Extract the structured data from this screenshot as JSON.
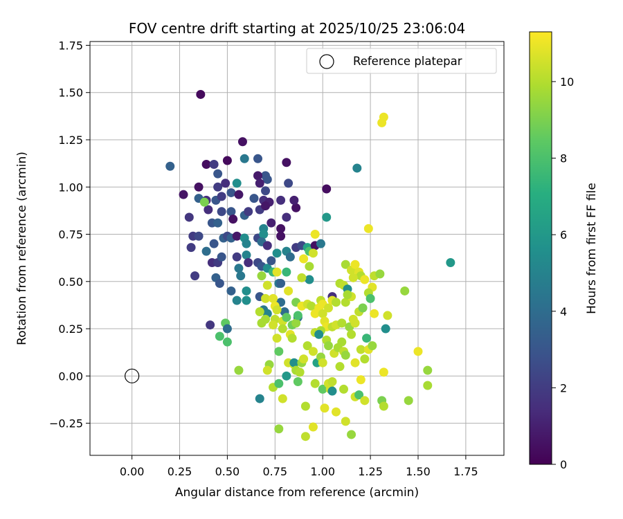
{
  "chart_data": {
    "type": "scatter",
    "title": "FOV centre drift starting at 2025/10/25 23:06:04",
    "xlabel": "Angular distance from reference (arcmin)",
    "ylabel": "Rotation from reference (arcmin)",
    "xlim": [
      -0.22,
      1.95
    ],
    "ylim": [
      -0.42,
      1.77
    ],
    "xticks": [
      "0.00",
      "0.25",
      "0.50",
      "0.75",
      "1.00",
      "1.25",
      "1.50",
      "1.75"
    ],
    "yticks": [
      "−0.25",
      "0.00",
      "0.25",
      "0.50",
      "0.75",
      "1.00",
      "1.25",
      "1.50",
      "1.75"
    ],
    "grid": true,
    "legend": {
      "placement": "upper-right",
      "entries": [
        "Reference platepar"
      ]
    },
    "reference_point": {
      "label": "Reference platepar",
      "x": 0.0,
      "y": 0.0
    },
    "colorbar": {
      "label": "Hours from first FF file",
      "range": [
        0,
        11.3
      ],
      "ticks": [
        "0",
        "2",
        "4",
        "6",
        "8",
        "10"
      ],
      "colormap": "viridis"
    },
    "points": [
      {
        "x": 0.36,
        "y": 1.49,
        "h": 0.3
      },
      {
        "x": 0.58,
        "y": 1.24,
        "h": 0.5
      },
      {
        "x": 0.39,
        "y": 1.12,
        "h": 0.4
      },
      {
        "x": 0.5,
        "y": 1.14,
        "h": 0.3
      },
      {
        "x": 0.81,
        "y": 1.13,
        "h": 0.5
      },
      {
        "x": 0.2,
        "y": 1.11,
        "h": 3.5
      },
      {
        "x": 0.43,
        "y": 1.12,
        "h": 2.0
      },
      {
        "x": 0.45,
        "y": 1.07,
        "h": 3.0
      },
      {
        "x": 0.59,
        "y": 1.15,
        "h": 4.5
      },
      {
        "x": 0.66,
        "y": 1.15,
        "h": 3.0
      },
      {
        "x": 0.7,
        "y": 1.06,
        "h": 3.0
      },
      {
        "x": 1.18,
        "y": 1.1,
        "h": 5.0
      },
      {
        "x": 1.02,
        "y": 0.99,
        "h": 0.4
      },
      {
        "x": 0.27,
        "y": 0.96,
        "h": 0.6
      },
      {
        "x": 0.35,
        "y": 1.0,
        "h": 0.5
      },
      {
        "x": 0.45,
        "y": 1.0,
        "h": 2.0
      },
      {
        "x": 0.49,
        "y": 1.02,
        "h": 1.5
      },
      {
        "x": 0.55,
        "y": 1.02,
        "h": 5.5
      },
      {
        "x": 0.66,
        "y": 1.06,
        "h": 0.8
      },
      {
        "x": 0.71,
        "y": 1.04,
        "h": 3.0
      },
      {
        "x": 0.82,
        "y": 1.02,
        "h": 2.5
      },
      {
        "x": 0.39,
        "y": 0.93,
        "h": 1.5
      },
      {
        "x": 0.44,
        "y": 0.93,
        "h": 3.0
      },
      {
        "x": 0.35,
        "y": 0.94,
        "h": 3.5
      },
      {
        "x": 0.47,
        "y": 0.95,
        "h": 2.0
      },
      {
        "x": 0.52,
        "y": 0.97,
        "h": 3.0
      },
      {
        "x": 0.56,
        "y": 0.96,
        "h": 0.7
      },
      {
        "x": 0.64,
        "y": 0.94,
        "h": 3.0
      },
      {
        "x": 0.67,
        "y": 1.02,
        "h": 1.0
      },
      {
        "x": 0.7,
        "y": 0.98,
        "h": 2.5
      },
      {
        "x": 0.69,
        "y": 0.93,
        "h": 1.5
      },
      {
        "x": 0.72,
        "y": 0.92,
        "h": 1.0
      },
      {
        "x": 0.78,
        "y": 0.93,
        "h": 1.5
      },
      {
        "x": 0.86,
        "y": 0.89,
        "h": 0.5
      },
      {
        "x": 0.85,
        "y": 0.93,
        "h": 1.0
      },
      {
        "x": 0.3,
        "y": 0.84,
        "h": 1.8
      },
      {
        "x": 0.4,
        "y": 0.88,
        "h": 1.5
      },
      {
        "x": 0.47,
        "y": 0.87,
        "h": 2.5
      },
      {
        "x": 0.52,
        "y": 0.87,
        "h": 3.0
      },
      {
        "x": 0.53,
        "y": 0.83,
        "h": 0.5
      },
      {
        "x": 0.59,
        "y": 0.85,
        "h": 3.5
      },
      {
        "x": 0.61,
        "y": 0.87,
        "h": 2.0
      },
      {
        "x": 0.67,
        "y": 0.88,
        "h": 2.0
      },
      {
        "x": 0.7,
        "y": 0.9,
        "h": 0.7
      },
      {
        "x": 0.73,
        "y": 0.81,
        "h": 1.0
      },
      {
        "x": 0.78,
        "y": 0.78,
        "h": 0.5
      },
      {
        "x": 0.81,
        "y": 0.84,
        "h": 1.5
      },
      {
        "x": 0.42,
        "y": 0.81,
        "h": 3.0
      },
      {
        "x": 0.45,
        "y": 0.81,
        "h": 3.5
      },
      {
        "x": 0.32,
        "y": 0.74,
        "h": 2.0
      },
      {
        "x": 0.35,
        "y": 0.74,
        "h": 2.5
      },
      {
        "x": 0.31,
        "y": 0.68,
        "h": 2.0
      },
      {
        "x": 0.43,
        "y": 0.7,
        "h": 3.0
      },
      {
        "x": 0.48,
        "y": 0.73,
        "h": 3.5
      },
      {
        "x": 0.5,
        "y": 0.74,
        "h": 2.5
      },
      {
        "x": 0.52,
        "y": 0.73,
        "h": 3.5
      },
      {
        "x": 0.55,
        "y": 0.74,
        "h": 0.7
      },
      {
        "x": 0.59,
        "y": 0.73,
        "h": 5.5
      },
      {
        "x": 0.6,
        "y": 0.7,
        "h": 5.0
      },
      {
        "x": 0.66,
        "y": 0.73,
        "h": 2.5
      },
      {
        "x": 0.69,
        "y": 0.78,
        "h": 5.0
      },
      {
        "x": 0.69,
        "y": 0.75,
        "h": 5.5
      },
      {
        "x": 0.68,
        "y": 0.71,
        "h": 4.0
      },
      {
        "x": 0.71,
        "y": 0.69,
        "h": 1.5
      },
      {
        "x": 0.78,
        "y": 0.74,
        "h": 0.5
      },
      {
        "x": 0.86,
        "y": 0.68,
        "h": 2.0
      },
      {
        "x": 0.89,
        "y": 0.69,
        "h": 2.5
      },
      {
        "x": 0.92,
        "y": 0.68,
        "h": 6.5
      },
      {
        "x": 0.93,
        "y": 0.66,
        "h": 8.0
      },
      {
        "x": 0.96,
        "y": 0.69,
        "h": 0.5
      },
      {
        "x": 0.99,
        "y": 0.7,
        "h": 4.5
      },
      {
        "x": 1.02,
        "y": 0.84,
        "h": 6.0
      },
      {
        "x": 0.39,
        "y": 0.66,
        "h": 4.0
      },
      {
        "x": 0.42,
        "y": 0.6,
        "h": 1.5
      },
      {
        "x": 0.45,
        "y": 0.6,
        "h": 2.0
      },
      {
        "x": 0.47,
        "y": 0.63,
        "h": 3.0
      },
      {
        "x": 0.55,
        "y": 0.63,
        "h": 2.0
      },
      {
        "x": 0.56,
        "y": 0.57,
        "h": 4.5
      },
      {
        "x": 0.6,
        "y": 0.64,
        "h": 5.0
      },
      {
        "x": 0.61,
        "y": 0.6,
        "h": 1.5
      },
      {
        "x": 0.66,
        "y": 0.6,
        "h": 2.5
      },
      {
        "x": 0.68,
        "y": 0.58,
        "h": 3.0
      },
      {
        "x": 0.71,
        "y": 0.57,
        "h": 5.5
      },
      {
        "x": 0.73,
        "y": 0.61,
        "h": 3.0
      },
      {
        "x": 0.76,
        "y": 0.65,
        "h": 5.5
      },
      {
        "x": 0.81,
        "y": 0.66,
        "h": 5.0
      },
      {
        "x": 0.83,
        "y": 0.63,
        "h": 4.0
      },
      {
        "x": 0.38,
        "y": 0.92,
        "h": 9.0
      },
      {
        "x": 0.33,
        "y": 0.53,
        "h": 2.0
      },
      {
        "x": 0.44,
        "y": 0.52,
        "h": 3.5
      },
      {
        "x": 0.46,
        "y": 0.49,
        "h": 3.0
      },
      {
        "x": 0.57,
        "y": 0.53,
        "h": 4.5
      },
      {
        "x": 0.52,
        "y": 0.45,
        "h": 3.5
      },
      {
        "x": 0.55,
        "y": 0.4,
        "h": 5.0
      },
      {
        "x": 0.6,
        "y": 0.45,
        "h": 5.5
      },
      {
        "x": 0.6,
        "y": 0.4,
        "h": 5.5
      },
      {
        "x": 0.67,
        "y": 0.42,
        "h": 3.0
      },
      {
        "x": 0.69,
        "y": 0.35,
        "h": 4.5
      },
      {
        "x": 0.71,
        "y": 0.33,
        "h": 5.0
      },
      {
        "x": 0.77,
        "y": 0.49,
        "h": 4.5
      },
      {
        "x": 0.78,
        "y": 0.49,
        "h": 3.5
      },
      {
        "x": 0.78,
        "y": 0.39,
        "h": 4.0
      },
      {
        "x": 0.8,
        "y": 0.34,
        "h": 4.0
      },
      {
        "x": 0.87,
        "y": 0.31,
        "h": 4.0
      },
      {
        "x": 0.93,
        "y": 0.51,
        "h": 5.5
      },
      {
        "x": 1.05,
        "y": 0.42,
        "h": 1.5
      },
      {
        "x": 1.67,
        "y": 0.6,
        "h": 6.0
      },
      {
        "x": 0.81,
        "y": 0.55,
        "h": 7.5
      },
      {
        "x": 0.68,
        "y": 0.53,
        "h": 9.5
      },
      {
        "x": 0.74,
        "y": 0.55,
        "h": 7.5
      },
      {
        "x": 0.71,
        "y": 0.48,
        "h": 10.5
      },
      {
        "x": 0.76,
        "y": 0.55,
        "h": 10.8
      },
      {
        "x": 0.89,
        "y": 0.52,
        "h": 10.2
      },
      {
        "x": 0.9,
        "y": 0.62,
        "h": 11.0
      },
      {
        "x": 0.93,
        "y": 0.58,
        "h": 9.8
      },
      {
        "x": 0.95,
        "y": 0.65,
        "h": 10.5
      },
      {
        "x": 0.96,
        "y": 0.75,
        "h": 11.0
      },
      {
        "x": 0.7,
        "y": 0.41,
        "h": 10.5
      },
      {
        "x": 0.74,
        "y": 0.41,
        "h": 10.8
      },
      {
        "x": 0.75,
        "y": 0.37,
        "h": 11.0
      },
      {
        "x": 0.76,
        "y": 0.35,
        "h": 10.5
      },
      {
        "x": 0.67,
        "y": 0.34,
        "h": 10.0
      },
      {
        "x": 0.7,
        "y": 0.3,
        "h": 9.8
      },
      {
        "x": 0.75,
        "y": 0.3,
        "h": 10.2
      },
      {
        "x": 0.79,
        "y": 0.29,
        "h": 10.5
      },
      {
        "x": 0.82,
        "y": 0.45,
        "h": 10.8
      },
      {
        "x": 0.86,
        "y": 0.39,
        "h": 9.0
      },
      {
        "x": 0.89,
        "y": 0.37,
        "h": 11.0
      },
      {
        "x": 0.92,
        "y": 0.38,
        "h": 10.5
      },
      {
        "x": 0.94,
        "y": 0.37,
        "h": 10.0
      },
      {
        "x": 0.98,
        "y": 0.36,
        "h": 11.0
      },
      {
        "x": 0.99,
        "y": 0.4,
        "h": 10.2
      },
      {
        "x": 1.0,
        "y": 0.38,
        "h": 11.0
      },
      {
        "x": 1.03,
        "y": 0.36,
        "h": 10.5
      },
      {
        "x": 1.05,
        "y": 0.4,
        "h": 10.8
      },
      {
        "x": 1.07,
        "y": 0.39,
        "h": 10.0
      },
      {
        "x": 0.68,
        "y": 0.28,
        "h": 9.8
      },
      {
        "x": 0.74,
        "y": 0.27,
        "h": 10.5
      },
      {
        "x": 0.81,
        "y": 0.31,
        "h": 8.5
      },
      {
        "x": 0.84,
        "y": 0.27,
        "h": 8.8
      },
      {
        "x": 0.86,
        "y": 0.28,
        "h": 9.5
      },
      {
        "x": 0.87,
        "y": 0.32,
        "h": 8.0
      },
      {
        "x": 0.96,
        "y": 0.33,
        "h": 11.0
      },
      {
        "x": 1.0,
        "y": 0.33,
        "h": 10.5
      },
      {
        "x": 1.01,
        "y": 0.29,
        "h": 10.8
      },
      {
        "x": 1.02,
        "y": 0.26,
        "h": 11.0
      },
      {
        "x": 0.99,
        "y": 0.24,
        "h": 9.8
      },
      {
        "x": 1.05,
        "y": 0.26,
        "h": 10.2
      },
      {
        "x": 1.07,
        "y": 0.27,
        "h": 10.5
      },
      {
        "x": 1.1,
        "y": 0.28,
        "h": 10.0
      },
      {
        "x": 1.14,
        "y": 0.26,
        "h": 9.5
      },
      {
        "x": 1.17,
        "y": 0.28,
        "h": 10.5
      },
      {
        "x": 1.19,
        "y": 0.34,
        "h": 10.2
      },
      {
        "x": 1.21,
        "y": 0.36,
        "h": 9.0
      },
      {
        "x": 1.16,
        "y": 0.3,
        "h": 10.5
      },
      {
        "x": 1.12,
        "y": 0.59,
        "h": 9.8
      },
      {
        "x": 1.15,
        "y": 0.56,
        "h": 10.5
      },
      {
        "x": 1.17,
        "y": 0.59,
        "h": 11.0
      },
      {
        "x": 1.19,
        "y": 0.55,
        "h": 10.8
      },
      {
        "x": 1.2,
        "y": 0.53,
        "h": 10.0
      },
      {
        "x": 1.22,
        "y": 0.51,
        "h": 11.0
      },
      {
        "x": 1.24,
        "y": 0.78,
        "h": 11.0
      },
      {
        "x": 1.27,
        "y": 0.53,
        "h": 10.2
      },
      {
        "x": 1.3,
        "y": 0.54,
        "h": 9.5
      },
      {
        "x": 1.26,
        "y": 0.47,
        "h": 10.8
      },
      {
        "x": 1.24,
        "y": 0.44,
        "h": 10.0
      },
      {
        "x": 1.25,
        "y": 0.41,
        "h": 8.0
      },
      {
        "x": 1.16,
        "y": 0.52,
        "h": 10.5
      },
      {
        "x": 1.09,
        "y": 0.49,
        "h": 10.0
      },
      {
        "x": 1.11,
        "y": 0.48,
        "h": 10.2
      },
      {
        "x": 1.13,
        "y": 0.46,
        "h": 5.5
      },
      {
        "x": 1.12,
        "y": 0.39,
        "h": 10.0
      },
      {
        "x": 1.15,
        "y": 0.42,
        "h": 10.5
      },
      {
        "x": 1.13,
        "y": 0.43,
        "h": 9.8
      },
      {
        "x": 1.31,
        "y": 1.34,
        "h": 11.0
      },
      {
        "x": 1.32,
        "y": 1.37,
        "h": 11.0
      },
      {
        "x": 1.43,
        "y": 0.45,
        "h": 9.5
      },
      {
        "x": 1.33,
        "y": 0.25,
        "h": 5.5
      },
      {
        "x": 1.34,
        "y": 0.32,
        "h": 10.5
      },
      {
        "x": 1.27,
        "y": 0.33,
        "h": 11.0
      },
      {
        "x": 0.56,
        "y": 0.03,
        "h": 9.5
      },
      {
        "x": 0.5,
        "y": 0.18,
        "h": 8.0
      },
      {
        "x": 0.49,
        "y": 0.28,
        "h": 8.5
      },
      {
        "x": 0.46,
        "y": 0.21,
        "h": 8.0
      },
      {
        "x": 0.5,
        "y": 0.25,
        "h": 4.0
      },
      {
        "x": 0.41,
        "y": 0.27,
        "h": 1.8
      },
      {
        "x": 0.72,
        "y": 0.06,
        "h": 9.5
      },
      {
        "x": 0.71,
        "y": 0.03,
        "h": 10.5
      },
      {
        "x": 0.67,
        "y": -0.12,
        "h": 5.0
      },
      {
        "x": 0.74,
        "y": -0.06,
        "h": 10.0
      },
      {
        "x": 0.77,
        "y": -0.04,
        "h": 8.0
      },
      {
        "x": 0.79,
        "y": -0.12,
        "h": 10.5
      },
      {
        "x": 0.77,
        "y": -0.28,
        "h": 9.5
      },
      {
        "x": 0.76,
        "y": 0.2,
        "h": 10.5
      },
      {
        "x": 0.79,
        "y": 0.25,
        "h": 10.0
      },
      {
        "x": 0.77,
        "y": 0.13,
        "h": 8.5
      },
      {
        "x": 0.82,
        "y": 0.07,
        "h": 10.5
      },
      {
        "x": 0.81,
        "y": 0.0,
        "h": 6.0
      },
      {
        "x": 0.83,
        "y": 0.22,
        "h": 10.8
      },
      {
        "x": 0.84,
        "y": 0.2,
        "h": 10.0
      },
      {
        "x": 0.85,
        "y": 0.06,
        "h": 10.5
      },
      {
        "x": 0.85,
        "y": 0.07,
        "h": 5.5
      },
      {
        "x": 0.86,
        "y": 0.03,
        "h": 9.8
      },
      {
        "x": 0.87,
        "y": -0.03,
        "h": 8.5
      },
      {
        "x": 0.89,
        "y": 0.07,
        "h": 9.5
      },
      {
        "x": 0.9,
        "y": 0.09,
        "h": 10.5
      },
      {
        "x": 0.88,
        "y": 0.02,
        "h": 10.0
      },
      {
        "x": 0.91,
        "y": -0.16,
        "h": 10.0
      },
      {
        "x": 0.91,
        "y": -0.32,
        "h": 10.2
      },
      {
        "x": 0.95,
        "y": -0.27,
        "h": 10.8
      },
      {
        "x": 0.92,
        "y": 0.16,
        "h": 10.0
      },
      {
        "x": 0.95,
        "y": 0.13,
        "h": 10.5
      },
      {
        "x": 0.96,
        "y": 0.23,
        "h": 10.2
      },
      {
        "x": 0.97,
        "y": 0.07,
        "h": 6.5
      },
      {
        "x": 0.96,
        "y": -0.04,
        "h": 10.0
      },
      {
        "x": 0.98,
        "y": 0.22,
        "h": 5.5
      },
      {
        "x": 0.99,
        "y": 0.1,
        "h": 9.5
      },
      {
        "x": 1.0,
        "y": 0.07,
        "h": 10.5
      },
      {
        "x": 1.0,
        "y": -0.07,
        "h": 8.5
      },
      {
        "x": 1.01,
        "y": -0.17,
        "h": 10.8
      },
      {
        "x": 1.02,
        "y": 0.19,
        "h": 10.0
      },
      {
        "x": 1.03,
        "y": 0.16,
        "h": 9.5
      },
      {
        "x": 1.03,
        "y": -0.04,
        "h": 10.5
      },
      {
        "x": 1.04,
        "y": -0.07,
        "h": 10.5
      },
      {
        "x": 1.05,
        "y": -0.08,
        "h": 5.5
      },
      {
        "x": 1.05,
        "y": -0.03,
        "h": 10.2
      },
      {
        "x": 1.06,
        "y": 0.12,
        "h": 10.5
      },
      {
        "x": 1.07,
        "y": -0.19,
        "h": 10.8
      },
      {
        "x": 1.08,
        "y": 0.15,
        "h": 9.8
      },
      {
        "x": 1.09,
        "y": 0.05,
        "h": 10.0
      },
      {
        "x": 1.1,
        "y": 0.18,
        "h": 9.8
      },
      {
        "x": 1.11,
        "y": 0.13,
        "h": 10.2
      },
      {
        "x": 1.12,
        "y": 0.11,
        "h": 9.5
      },
      {
        "x": 1.11,
        "y": -0.07,
        "h": 10.0
      },
      {
        "x": 1.12,
        "y": -0.24,
        "h": 10.5
      },
      {
        "x": 1.15,
        "y": 0.22,
        "h": 10.0
      },
      {
        "x": 1.17,
        "y": 0.07,
        "h": 10.8
      },
      {
        "x": 1.17,
        "y": -0.11,
        "h": 10.5
      },
      {
        "x": 1.15,
        "y": -0.31,
        "h": 9.5
      },
      {
        "x": 1.19,
        "y": -0.1,
        "h": 8.0
      },
      {
        "x": 1.2,
        "y": -0.02,
        "h": 11.0
      },
      {
        "x": 1.2,
        "y": 0.14,
        "h": 10.2
      },
      {
        "x": 1.22,
        "y": 0.09,
        "h": 10.0
      },
      {
        "x": 1.22,
        "y": -0.13,
        "h": 10.5
      },
      {
        "x": 1.23,
        "y": 0.2,
        "h": 7.5
      },
      {
        "x": 1.24,
        "y": 0.14,
        "h": 10.8
      },
      {
        "x": 1.26,
        "y": 0.16,
        "h": 9.5
      },
      {
        "x": 1.31,
        "y": -0.13,
        "h": 9.0
      },
      {
        "x": 1.32,
        "y": -0.16,
        "h": 10.0
      },
      {
        "x": 1.32,
        "y": 0.02,
        "h": 11.0
      },
      {
        "x": 1.45,
        "y": -0.13,
        "h": 9.5
      },
      {
        "x": 1.5,
        "y": 0.13,
        "h": 11.0
      },
      {
        "x": 1.55,
        "y": 0.03,
        "h": 9.5
      },
      {
        "x": 1.55,
        "y": -0.05,
        "h": 9.8
      }
    ]
  }
}
